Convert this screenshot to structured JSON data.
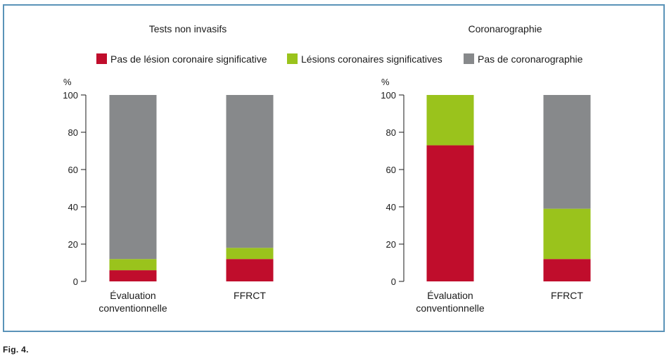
{
  "figure": {
    "caption": "Fig. 4."
  },
  "legend": {
    "items": [
      {
        "label": "Pas de lésion coronaire significative",
        "color": "#c00d2c"
      },
      {
        "label": "Lésions coronaires significatives",
        "color": "#9ac31c"
      },
      {
        "label": "Pas de coronarographie",
        "color": "#87898b"
      }
    ]
  },
  "chart_data": [
    {
      "type": "bar",
      "stacked": true,
      "title": "Tests non invasifs",
      "ylabel": "%",
      "ylim": [
        0,
        100
      ],
      "yticks": [
        "0",
        "20",
        "40",
        "60",
        "80",
        "100"
      ],
      "categories": [
        "Évaluation\nconventionnelle",
        "FFRCT"
      ],
      "series": [
        {
          "name": "Pas de lésion coronaire significative",
          "values": [
            6,
            12
          ]
        },
        {
          "name": "Lésions coronaires significatives",
          "values": [
            6,
            6
          ]
        },
        {
          "name": "Pas de coronarographie",
          "values": [
            88,
            82
          ]
        }
      ]
    },
    {
      "type": "bar",
      "stacked": true,
      "title": "Coronarographie",
      "ylabel": "%",
      "ylim": [
        0,
        100
      ],
      "yticks": [
        "0",
        "20",
        "40",
        "60",
        "80",
        "100"
      ],
      "categories": [
        "Évaluation\nconventionnelle",
        "FFRCT"
      ],
      "series": [
        {
          "name": "Pas de lésion coronaire significative",
          "values": [
            73,
            12
          ]
        },
        {
          "name": "Lésions coronaires significatives",
          "values": [
            27,
            27
          ]
        },
        {
          "name": "Pas de coronarographie",
          "values": [
            0,
            61
          ]
        }
      ]
    }
  ]
}
